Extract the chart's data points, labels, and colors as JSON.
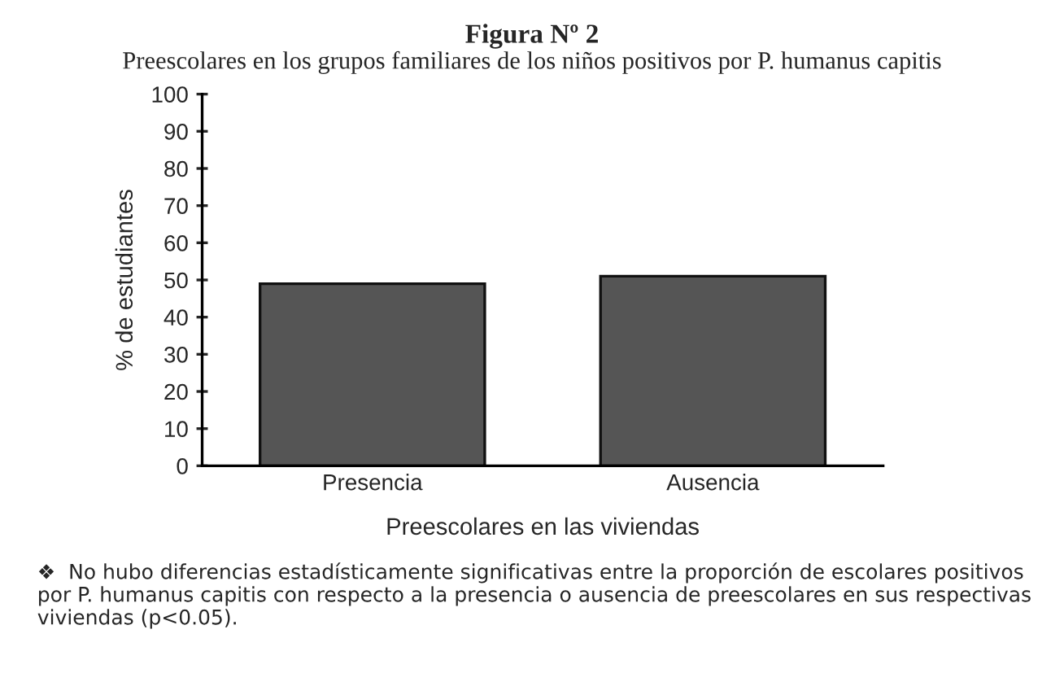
{
  "chart_data": {
    "type": "bar",
    "title": "Figura Nº 2",
    "subtitle": "Preescolares en los grupos familiares de los niños positivos por P. humanus capitis",
    "categories": [
      "Presencia",
      "Ausencia"
    ],
    "values": [
      49,
      51
    ],
    "color": "#555555",
    "xlabel": "Preescolares en las viviendas",
    "ylabel": "% de estudiantes",
    "ylim": [
      0,
      100
    ],
    "yticks": [
      0,
      10,
      20,
      30,
      40,
      50,
      60,
      70,
      80,
      90,
      100
    ],
    "grid": false,
    "legend": false,
    "annotations": [
      "❖  No hubo diferencias estadísticamente significativas entre la proporción de escolares positivos por P. humanus capitis con respecto a la presencia o ausencia de preescolares en sus respectivas viviendas (p<0.05)."
    ]
  }
}
